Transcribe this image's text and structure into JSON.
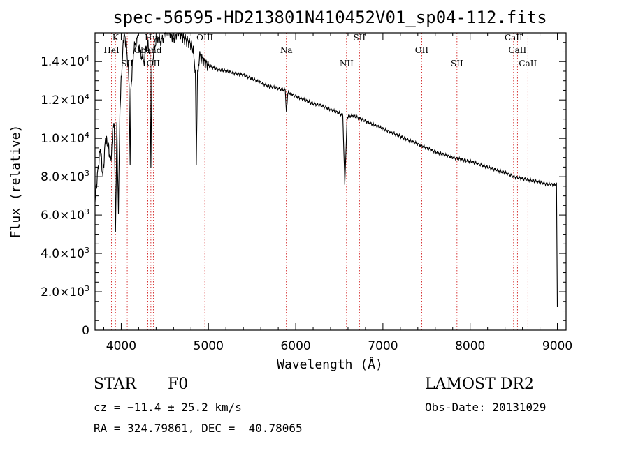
{
  "title": "spec-56595-HD213801N410452V01_sp04-112.fits",
  "chart_data": {
    "type": "line",
    "xlabel": "Wavelength (Å)",
    "ylabel": "Flux (relative)",
    "xlim": [
      3700,
      9100
    ],
    "ylim": [
      0,
      15500
    ],
    "x_ticks": [
      4000,
      5000,
      6000,
      7000,
      8000,
      9000
    ],
    "y_ticks": [
      {
        "value": 0,
        "mant": "0",
        "exp": ""
      },
      {
        "value": 2000,
        "mant": "2.0×10",
        "exp": "3"
      },
      {
        "value": 4000,
        "mant": "4.0×10",
        "exp": "3"
      },
      {
        "value": 6000,
        "mant": "6.0×10",
        "exp": "3"
      },
      {
        "value": 8000,
        "mant": "8.0×10",
        "exp": "3"
      },
      {
        "value": 10000,
        "mant": "1.0×10",
        "exp": "4"
      },
      {
        "value": 12000,
        "mant": "1.2×10",
        "exp": "4"
      },
      {
        "value": 14000,
        "mant": "1.4×10",
        "exp": "4"
      }
    ],
    "series": [
      {
        "x": [
          3700,
          3730,
          3760,
          3790,
          3820,
          3850,
          3880,
          3900,
          3920,
          3935,
          3950,
          3968,
          3985,
          4000,
          4030,
          4060,
          4090,
          4102,
          4110,
          4140,
          4180,
          4220,
          4260,
          4300,
          4330,
          4340,
          4350,
          4380,
          4420,
          4460,
          4500,
          4550,
          4600,
          4650,
          4700,
          4750,
          4800,
          4830,
          4850,
          4861,
          4875,
          4900,
          4950,
          5000,
          5100,
          5200,
          5300,
          5400,
          5500,
          5600,
          5700,
          5800,
          5880,
          5893,
          5910,
          6000,
          6100,
          6200,
          6300,
          6400,
          6500,
          6540,
          6563,
          6590,
          6650,
          6750,
          6850,
          7000,
          7200,
          7400,
          7600,
          7800,
          8000,
          8200,
          8400,
          8500,
          8600,
          8700,
          8800,
          8900,
          8990,
          9000
        ],
        "y": [
          6800,
          8200,
          9500,
          8000,
          10000,
          9600,
          8800,
          10200,
          11000,
          5200,
          10500,
          6000,
          11500,
          13000,
          15500,
          14800,
          13000,
          8500,
          12500,
          14500,
          15200,
          14500,
          14000,
          15000,
          14300,
          8200,
          13500,
          14800,
          15300,
          15000,
          15500,
          15600,
          15200,
          15600,
          15300,
          15100,
          14900,
          14500,
          13500,
          8700,
          13500,
          14300,
          14000,
          13800,
          13600,
          13500,
          13400,
          13300,
          13100,
          12900,
          12700,
          12600,
          12500,
          11400,
          12400,
          12200,
          12000,
          11800,
          11700,
          11500,
          11300,
          11200,
          7600,
          11100,
          11200,
          11000,
          10800,
          10500,
          10100,
          9700,
          9300,
          9000,
          8800,
          8500,
          8200,
          8000,
          7900,
          7800,
          7700,
          7600,
          7600,
          1200
        ]
      }
    ],
    "lines": [
      {
        "name": "K",
        "x": 3934
      },
      {
        "name": "HeI",
        "x": 3889
      },
      {
        "name": "SII",
        "x": 4069
      },
      {
        "name": "Hγ",
        "x": 4340
      },
      {
        "name": "Gband",
        "x": 4305
      },
      {
        "name": "OII",
        "x": 4368
      },
      {
        "name": "OIII",
        "x": 4959
      },
      {
        "name": "Na",
        "x": 5893
      },
      {
        "name": "NII",
        "x": 6583
      },
      {
        "name": "SII",
        "x": 6731
      },
      {
        "name": "OII",
        "x": 7445
      },
      {
        "name": "SII",
        "x": 7849
      },
      {
        "name": "CaII",
        "x": 8498
      },
      {
        "name": "CaII",
        "x": 8542
      },
      {
        "name": "CaII",
        "x": 8662
      }
    ]
  },
  "info": {
    "obj_type": "STAR",
    "subclass": "F0",
    "survey": "LAMOST DR2",
    "cz": "cz = −11.4 ± 25.2 km/s",
    "obs_date": "Obs-Date: 20131029",
    "radec": "RA = 324.79861, DEC =  40.78065"
  },
  "colors": {
    "axis": "#000000",
    "spectrum": "#000000",
    "line_marker": "#cc0000"
  }
}
